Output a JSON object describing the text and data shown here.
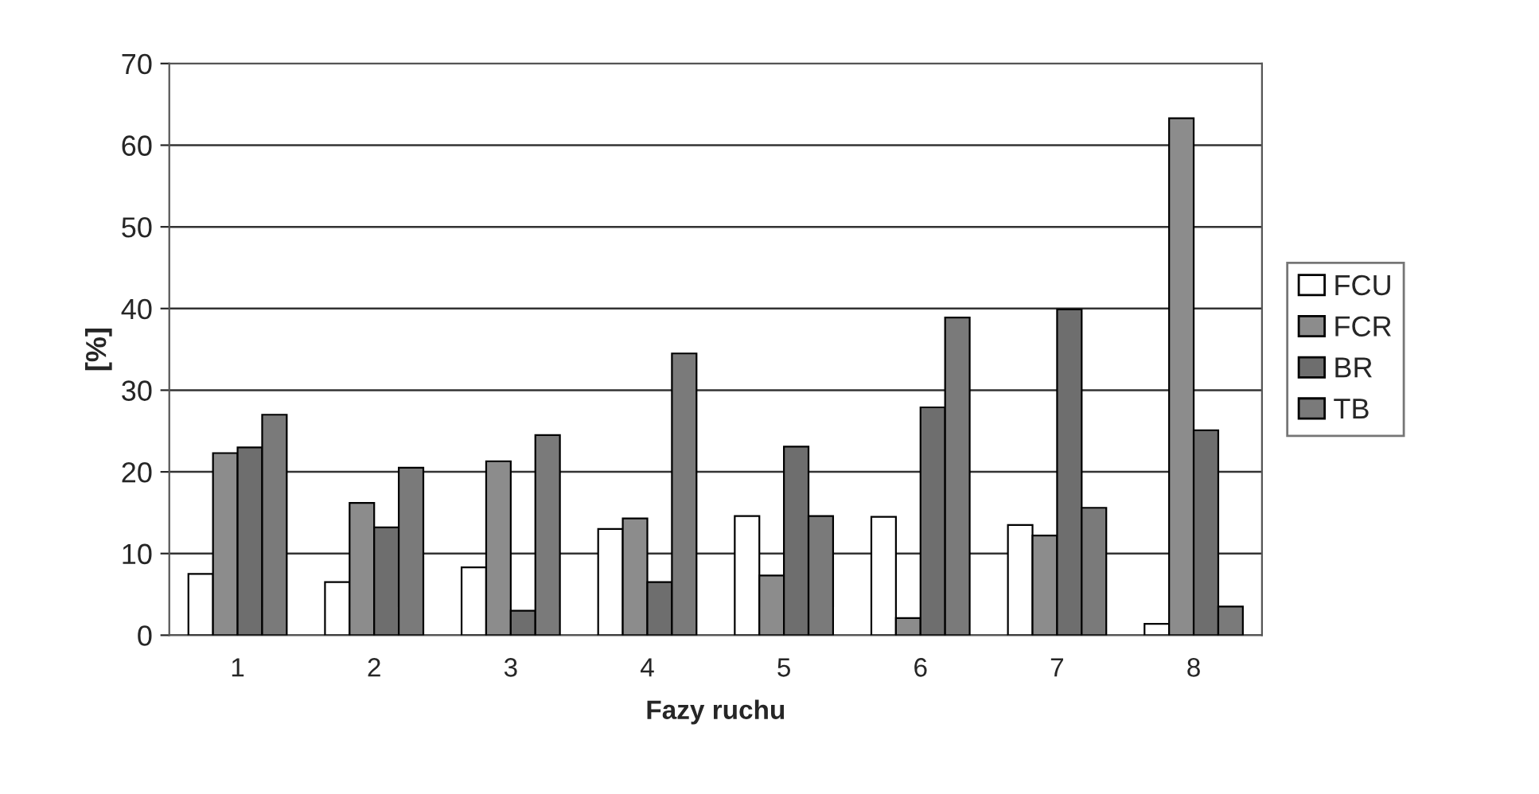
{
  "chart_data": {
    "type": "bar",
    "xlabel": "Fazy ruchu",
    "ylabel": "[%]",
    "categories": [
      "1",
      "2",
      "3",
      "4",
      "5",
      "6",
      "7",
      "8"
    ],
    "series": [
      {
        "name": "FCU",
        "color": "#ffffff",
        "values": [
          7.5,
          6.5,
          8.3,
          13,
          14.6,
          14.5,
          13.5,
          1.4
        ]
      },
      {
        "name": "FCR",
        "color": "#8c8c8c",
        "values": [
          22.3,
          16.2,
          21.3,
          14.3,
          7.3,
          2.1,
          12.2,
          63.3
        ]
      },
      {
        "name": "BR",
        "color": "#6e6e6e",
        "values": [
          23,
          13.2,
          3,
          6.5,
          23.1,
          27.9,
          39.9,
          25.1
        ]
      },
      {
        "name": "TB",
        "color": "#7a7a7a",
        "values": [
          27,
          20.5,
          24.5,
          34.5,
          14.6,
          38.9,
          15.6,
          3.5
        ]
      }
    ],
    "ylim": [
      0,
      70
    ],
    "yticks": [
      0,
      10,
      20,
      30,
      40,
      50,
      60,
      70
    ],
    "grid": "y",
    "legend": "right"
  }
}
